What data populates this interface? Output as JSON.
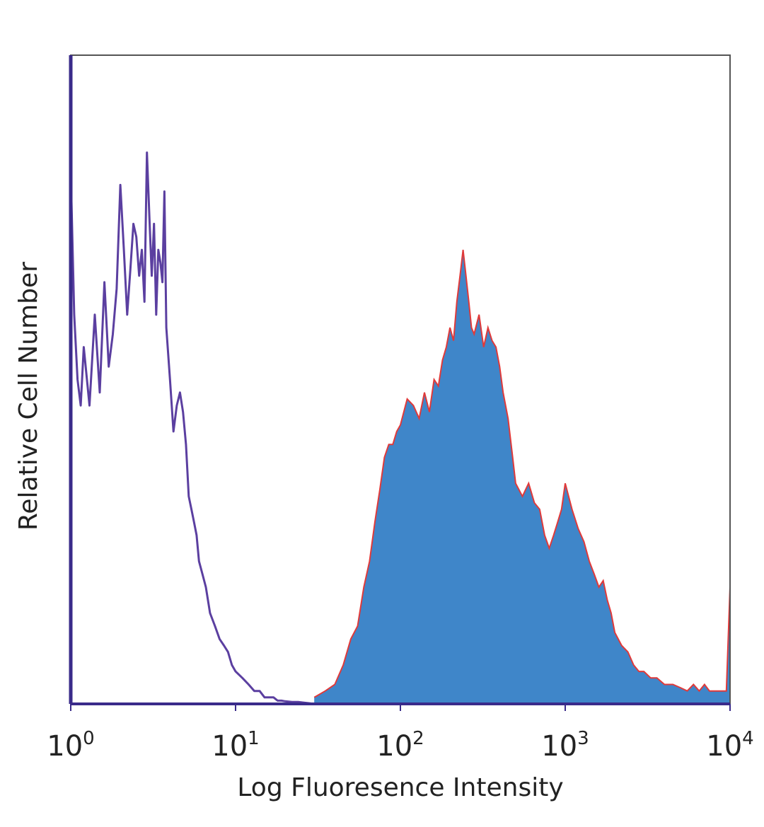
{
  "chart_data": {
    "type": "area",
    "title": "",
    "xlabel": "Log Fluoresence Intensity",
    "ylabel": "Relative Cell Number",
    "xscale": "log",
    "xlim": [
      1,
      10000
    ],
    "ylim": [
      0,
      1
    ],
    "grid": false,
    "legend": "none",
    "x_ticks": [
      {
        "base": "10",
        "exp": "0",
        "value": 1
      },
      {
        "base": "10",
        "exp": "1",
        "value": 10
      },
      {
        "base": "10",
        "exp": "2",
        "value": 100
      },
      {
        "base": "10",
        "exp": "3",
        "value": 1000
      },
      {
        "base": "10",
        "exp": "4",
        "value": 10000
      }
    ],
    "series": [
      {
        "style": "filled",
        "fill_color": "#3f86c9",
        "outline_color": "#e03a3a",
        "x": [
          30,
          35,
          40,
          45,
          50,
          55,
          60,
          65,
          70,
          75,
          80,
          85,
          90,
          95,
          100,
          110,
          120,
          130,
          140,
          150,
          160,
          170,
          180,
          190,
          200,
          210,
          220,
          230,
          240,
          250,
          260,
          270,
          280,
          300,
          320,
          340,
          360,
          380,
          400,
          420,
          450,
          480,
          500,
          550,
          600,
          650,
          700,
          750,
          800,
          850,
          900,
          950,
          1000,
          1100,
          1200,
          1300,
          1400,
          1500,
          1600,
          1700,
          1800,
          1900,
          2000,
          2200,
          2400,
          2600,
          2800,
          3000,
          3300,
          3600,
          4000,
          4500,
          5000,
          5500,
          6000,
          6500,
          7000,
          7500,
          8000,
          8500,
          9000,
          9500,
          10000
        ],
        "y": [
          0.01,
          0.02,
          0.03,
          0.06,
          0.1,
          0.12,
          0.18,
          0.22,
          0.28,
          0.33,
          0.38,
          0.4,
          0.4,
          0.42,
          0.43,
          0.47,
          0.46,
          0.44,
          0.48,
          0.45,
          0.5,
          0.49,
          0.53,
          0.55,
          0.58,
          0.56,
          0.62,
          0.66,
          0.7,
          0.66,
          0.62,
          0.58,
          0.57,
          0.6,
          0.55,
          0.58,
          0.56,
          0.55,
          0.52,
          0.48,
          0.44,
          0.38,
          0.34,
          0.32,
          0.34,
          0.31,
          0.3,
          0.26,
          0.24,
          0.26,
          0.28,
          0.3,
          0.34,
          0.3,
          0.27,
          0.25,
          0.22,
          0.2,
          0.18,
          0.19,
          0.16,
          0.14,
          0.11,
          0.09,
          0.08,
          0.06,
          0.05,
          0.05,
          0.04,
          0.04,
          0.03,
          0.03,
          0.025,
          0.02,
          0.03,
          0.02,
          0.03,
          0.02,
          0.02,
          0.02,
          0.02,
          0.02,
          0.18
        ]
      },
      {
        "style": "line",
        "line_color": "#5b3fa0",
        "x": [
          1.0,
          1.05,
          1.1,
          1.15,
          1.2,
          1.3,
          1.4,
          1.5,
          1.6,
          1.7,
          1.8,
          1.9,
          2.0,
          2.1,
          2.2,
          2.3,
          2.4,
          2.5,
          2.6,
          2.7,
          2.8,
          2.9,
          3.0,
          3.1,
          3.2,
          3.3,
          3.4,
          3.5,
          3.6,
          3.7,
          3.8,
          4.0,
          4.2,
          4.4,
          4.6,
          4.8,
          5.0,
          5.2,
          5.4,
          5.6,
          5.8,
          6.0,
          6.3,
          6.6,
          7.0,
          7.5,
          8.0,
          8.5,
          9.0,
          9.5,
          10,
          11,
          12,
          13,
          14,
          15,
          16,
          17,
          18,
          19,
          20,
          22,
          24,
          26,
          28,
          30
        ],
        "y": [
          0.82,
          0.6,
          0.5,
          0.46,
          0.55,
          0.46,
          0.6,
          0.48,
          0.65,
          0.52,
          0.57,
          0.64,
          0.8,
          0.7,
          0.6,
          0.67,
          0.74,
          0.72,
          0.66,
          0.7,
          0.62,
          0.85,
          0.75,
          0.66,
          0.74,
          0.6,
          0.7,
          0.68,
          0.65,
          0.79,
          0.58,
          0.5,
          0.42,
          0.46,
          0.48,
          0.45,
          0.4,
          0.32,
          0.3,
          0.28,
          0.26,
          0.22,
          0.2,
          0.18,
          0.14,
          0.12,
          0.1,
          0.09,
          0.08,
          0.06,
          0.05,
          0.04,
          0.03,
          0.02,
          0.02,
          0.01,
          0.01,
          0.01,
          0.005,
          0.005,
          0.004,
          0.003,
          0.003,
          0.002,
          0.001,
          0.0
        ]
      }
    ]
  }
}
